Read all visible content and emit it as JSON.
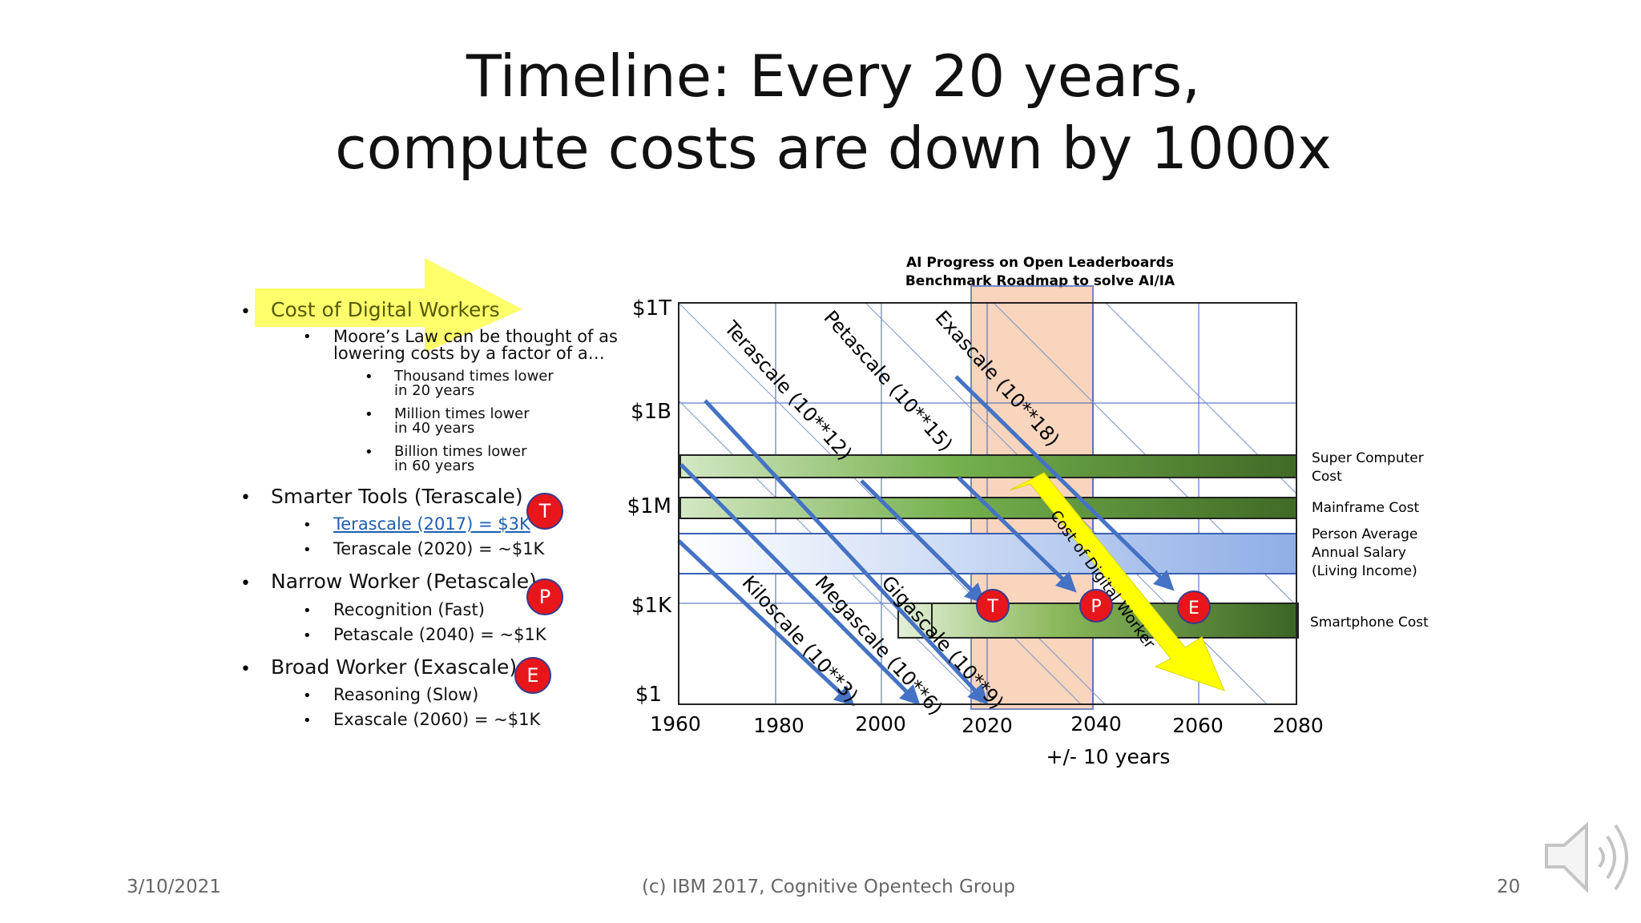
{
  "slide": {
    "title_line1": "Timeline: Every 20 years,",
    "title_line2": "compute costs are down by 1000x",
    "footer_date": "3/10/2021",
    "footer_center": "(c) IBM 2017, Cognitive Opentech Group",
    "page_number": "20"
  },
  "bullets": {
    "b1": "Cost of Digital Workers",
    "b1_sub1a": "Moore’s Law can be thought of as",
    "b1_sub1b": "lowering costs by a factor of a…",
    "b1_s1a": "Thousand times lower",
    "b1_s1b": "in 20 years",
    "b1_s2a": "Million times lower",
    "b1_s2b": "in 40 years",
    "b1_s3a": "Billion times lower",
    "b1_s3b": "in 60 years",
    "b2": "Smarter Tools (Terascale)",
    "b2_sub1": "Terascale (2017) = $3K",
    "b2_sub2": "Terascale (2020) = ~$1K",
    "b3": "Narrow Worker (Petascale)",
    "b3_sub1": "Recognition (Fast)",
    "b3_sub2": "Petascale (2040) =  ~$1K",
    "b4": "Broad Worker (Exascale)",
    "b4_sub1": "Reasoning (Slow)",
    "b4_sub2": "Exascale (2060) = ~$1K",
    "badge_t": "T",
    "badge_p": "P",
    "badge_e": "E"
  },
  "chart_data": {
    "type": "line",
    "title_line1": "AI Progress on Open Leaderboards",
    "title_line2": "Benchmark Roadmap to solve AI/IA",
    "x_ticks": [
      "1960",
      "1980",
      "2000",
      "2020",
      "2040",
      "2060",
      "2080"
    ],
    "y_ticks": [
      "$1",
      "$1K",
      "$1M",
      "$1B",
      "$1T"
    ],
    "xlabel": "+/- 10 years",
    "xlim": [
      1960,
      2080
    ],
    "ylim": [
      "$1",
      "$1T"
    ],
    "highlight_band": [
      2017,
      2040
    ],
    "bars": [
      {
        "label": "Super Computer Cost",
        "label_line1": "Super Computer",
        "label_line2": "Cost",
        "y": "$1M-$1B",
        "x_start": 1960,
        "x_end": 2080
      },
      {
        "label": "Mainframe Cost",
        "label_line1": "Mainframe Cost",
        "label_line2": "",
        "y": "$1M",
        "x_start": 1960,
        "x_end": 2080
      },
      {
        "label": "Person Average Annual Salary (Living Income)",
        "label_line1": "Person Average",
        "label_line2": "Annual Salary",
        "label_line3": "(Living Income)",
        "y": "$10K-$100K",
        "x_start": 1960,
        "x_end": 2080
      },
      {
        "label": "Smartphone Cost",
        "label_line1": "Smartphone Cost",
        "label_line2": "",
        "y": "$1K",
        "x_start": 2002,
        "x_end": 2080
      }
    ],
    "scale_lines": [
      {
        "name": "Kiloscale (10**3)",
        "label": "Kiloscale (10**3)",
        "reaches_1_dollar": 1995
      },
      {
        "name": "Megascale (10**6)",
        "label": "Megascale (10**6)",
        "reaches_1_dollar": 2007
      },
      {
        "name": "Gigascale (10**9)",
        "label": "Gigascale (10**9)",
        "reaches_1_dollar": 2020
      },
      {
        "name": "Terascale (10**12)",
        "label": "Terascale (10**12)",
        "reaches_1K": 2020
      },
      {
        "name": "Petascale (10**15)",
        "label": "Petascale (10**15)",
        "reaches_1K": 2040
      },
      {
        "name": "Exascale (10**18)",
        "label": "Exascale (10**18)",
        "reaches_1K": 2060
      }
    ],
    "markers": [
      {
        "label": "T",
        "x": 2020,
        "y": "$1K"
      },
      {
        "label": "P",
        "x": 2040,
        "y": "$1K"
      },
      {
        "label": "E",
        "x": 2060,
        "y": "$1K"
      }
    ],
    "trend_arrow_label": "Cost of Digital Worker",
    "colors": {
      "bar_dark": "#3f6a26",
      "bar_light": "#cfe6bf",
      "salary_blue": "#8eaee6",
      "band": "#f7c8a8",
      "line_blue": "#4472c4",
      "yellow": "#ffff00",
      "marker_red": "#e8161b"
    }
  }
}
